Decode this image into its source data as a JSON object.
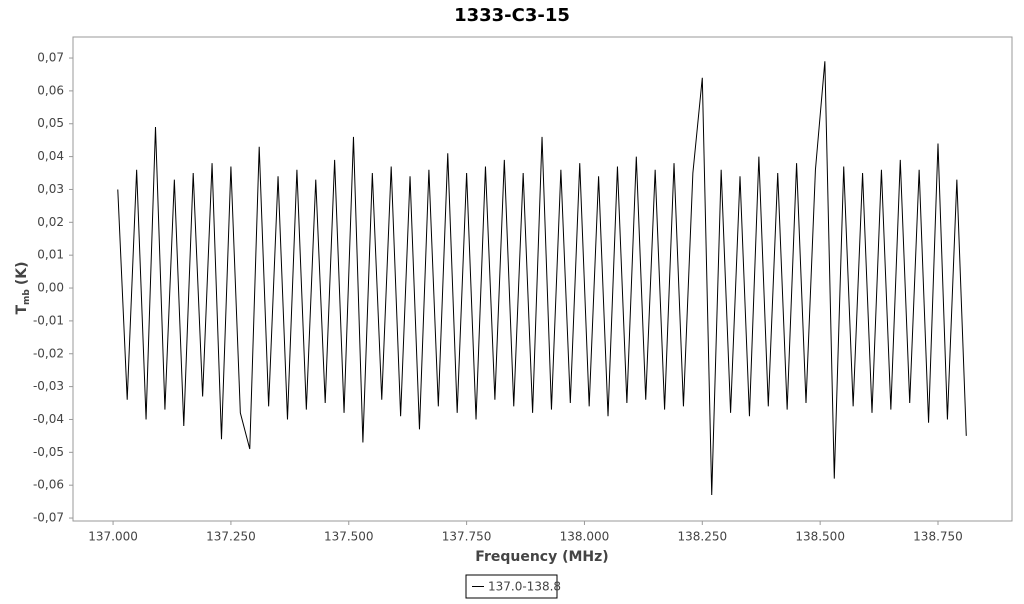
{
  "chart_data": {
    "type": "line",
    "title": "1333-C3-15",
    "x_label": "Frequency (MHz)",
    "y_label": "T",
    "y_label_sub": "mb",
    "y_label_unit": "(K)",
    "xlim": [
      136.915,
      138.907
    ],
    "ylim": [
      -0.0709,
      0.0764
    ],
    "xticks": [
      {
        "value": 137.0,
        "label": "137.000"
      },
      {
        "value": 137.25,
        "label": "137.250"
      },
      {
        "value": 137.5,
        "label": "137.500"
      },
      {
        "value": 137.75,
        "label": "137.750"
      },
      {
        "value": 138.0,
        "label": "138.000"
      },
      {
        "value": 138.25,
        "label": "138.250"
      },
      {
        "value": 138.5,
        "label": "138.500"
      },
      {
        "value": 138.75,
        "label": "138.750"
      }
    ],
    "yticks": [
      {
        "value": 0.07,
        "label": "0,07"
      },
      {
        "value": 0.06,
        "label": "0,06"
      },
      {
        "value": 0.05,
        "label": "0,05"
      },
      {
        "value": 0.04,
        "label": "0,04"
      },
      {
        "value": 0.03,
        "label": "0,03"
      },
      {
        "value": 0.02,
        "label": "0,02"
      },
      {
        "value": 0.01,
        "label": "0,01"
      },
      {
        "value": 0.0,
        "label": "0,00"
      },
      {
        "value": -0.01,
        "label": "-0,01"
      },
      {
        "value": -0.02,
        "label": "-0,02"
      },
      {
        "value": -0.03,
        "label": "-0,03"
      },
      {
        "value": -0.04,
        "label": "-0,04"
      },
      {
        "value": -0.05,
        "label": "-0,05"
      },
      {
        "value": -0.06,
        "label": "-0,06"
      },
      {
        "value": -0.07,
        "label": "-0,07"
      }
    ],
    "x": [
      137.01,
      137.03,
      137.05,
      137.07,
      137.09,
      137.11,
      137.13,
      137.15,
      137.17,
      137.19,
      137.21,
      137.23,
      137.25,
      137.27,
      137.29,
      137.31,
      137.33,
      137.35,
      137.37,
      137.39,
      137.41,
      137.43,
      137.45,
      137.47,
      137.49,
      137.51,
      137.53,
      137.55,
      137.57,
      137.59,
      137.61,
      137.63,
      137.65,
      137.67,
      137.69,
      137.71,
      137.73,
      137.75,
      137.77,
      137.79,
      137.81,
      137.83,
      137.85,
      137.87,
      137.89,
      137.91,
      137.93,
      137.95,
      137.97,
      137.99,
      138.01,
      138.03,
      138.05,
      138.07,
      138.09,
      138.11,
      138.13,
      138.15,
      138.17,
      138.19,
      138.21,
      138.23,
      138.25,
      138.27,
      138.29,
      138.31,
      138.33,
      138.35,
      138.37,
      138.39,
      138.41,
      138.43,
      138.45,
      138.47,
      138.49,
      138.51,
      138.53,
      138.55,
      138.57,
      138.59,
      138.61,
      138.63,
      138.65,
      138.67,
      138.69,
      138.71,
      138.73,
      138.75,
      138.77,
      138.79,
      138.81
    ],
    "series": [
      {
        "name": "137.0-138.8",
        "color": "#000000",
        "values": [
          0.03,
          -0.034,
          0.036,
          -0.04,
          0.049,
          -0.037,
          0.033,
          -0.042,
          0.035,
          -0.033,
          0.038,
          -0.046,
          0.037,
          -0.038,
          -0.049,
          0.043,
          -0.036,
          0.034,
          -0.04,
          0.036,
          -0.037,
          0.033,
          -0.035,
          0.039,
          -0.038,
          0.046,
          -0.047,
          0.035,
          -0.034,
          0.037,
          -0.039,
          0.034,
          -0.043,
          0.036,
          -0.036,
          0.041,
          -0.038,
          0.035,
          -0.04,
          0.037,
          -0.034,
          0.039,
          -0.036,
          0.035,
          -0.038,
          0.046,
          -0.037,
          0.036,
          -0.035,
          0.038,
          -0.036,
          0.034,
          -0.039,
          0.037,
          -0.035,
          0.04,
          -0.034,
          0.036,
          -0.037,
          0.038,
          -0.036,
          0.035,
          0.064,
          -0.063,
          0.036,
          -0.038,
          0.034,
          -0.039,
          0.04,
          -0.036,
          0.035,
          -0.037,
          0.038,
          -0.035,
          0.036,
          0.069,
          -0.058,
          0.037,
          -0.036,
          0.035,
          -0.038,
          0.036,
          -0.037,
          0.039,
          -0.035,
          0.036,
          -0.041,
          0.044,
          -0.04,
          0.033,
          -0.045
        ]
      }
    ]
  }
}
